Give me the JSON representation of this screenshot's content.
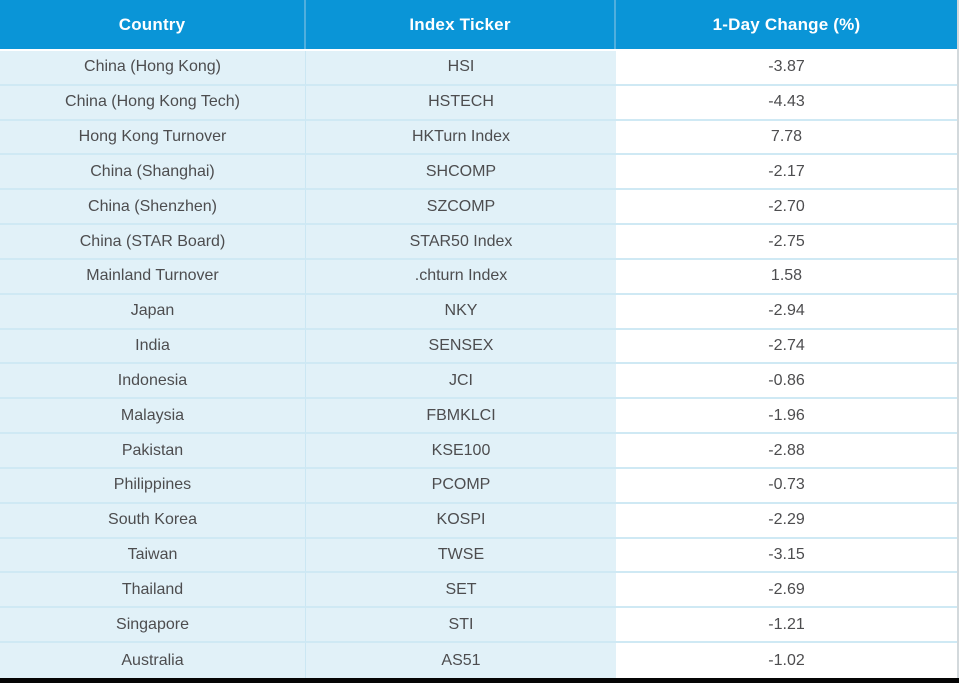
{
  "chart_data": {
    "type": "table",
    "columns": [
      "Country",
      "Index Ticker",
      "1-Day Change (%)"
    ],
    "rows": [
      [
        "China (Hong Kong)",
        "HSI",
        "-3.87"
      ],
      [
        "China (Hong Kong Tech)",
        "HSTECH",
        "-4.43"
      ],
      [
        "Hong Kong Turnover",
        "HKTurn Index",
        "7.78"
      ],
      [
        "China (Shanghai)",
        "SHCOMP",
        "-2.17"
      ],
      [
        "China (Shenzhen)",
        "SZCOMP",
        "-2.70"
      ],
      [
        "China (STAR Board)",
        "STAR50 Index",
        "-2.75"
      ],
      [
        "Mainland Turnover",
        ".chturn Index",
        "1.58"
      ],
      [
        "Japan",
        "NKY",
        "-2.94"
      ],
      [
        "India",
        "SENSEX",
        "-2.74"
      ],
      [
        "Indonesia",
        "JCI",
        "-0.86"
      ],
      [
        "Malaysia",
        "FBMKLCI",
        "-1.96"
      ],
      [
        "Pakistan",
        "KSE100",
        "-2.88"
      ],
      [
        "Philippines",
        "PCOMP",
        "-0.73"
      ],
      [
        "South Korea",
        "KOSPI",
        "-2.29"
      ],
      [
        "Taiwan",
        "TWSE",
        "-3.15"
      ],
      [
        "Thailand",
        "SET",
        "-2.69"
      ],
      [
        "Singapore",
        "STI",
        "-1.21"
      ],
      [
        "Australia",
        "AS51",
        "-1.02"
      ]
    ],
    "title": "",
    "legend": null,
    "layout_hints": {
      "header_position": "top",
      "value_alignment": "center",
      "grid": "horizontal-separators"
    }
  },
  "colors": {
    "header_bg": "#0a95d7",
    "header_text": "#ffffff",
    "row_bg_light_blue": "#e1f1f8",
    "change_column_bg": "#ffffff",
    "row_separator": "#cfe9f4",
    "header_column_separator": "#4fafde",
    "body_text": "#4d4d4f",
    "bottom_bar": "#050505"
  }
}
